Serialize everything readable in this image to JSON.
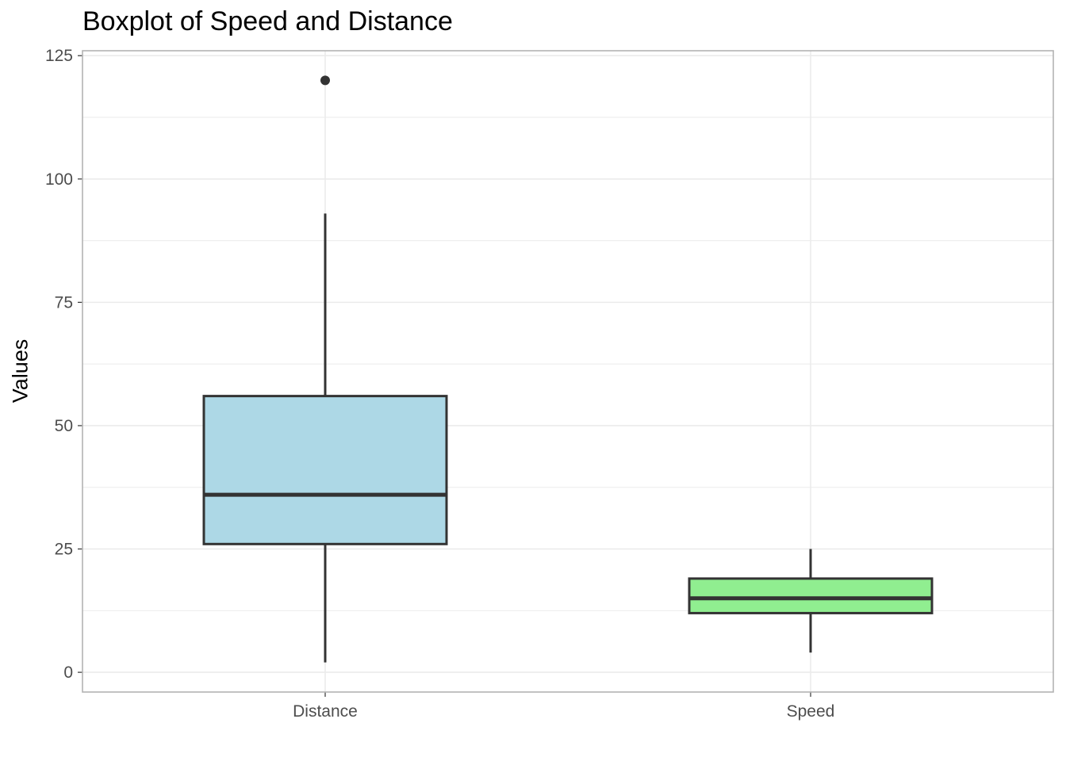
{
  "chart_data": {
    "type": "boxplot",
    "title": "Boxplot of Speed and Distance",
    "xlabel": "",
    "ylabel": "Values",
    "ylim": [
      -4,
      126
    ],
    "y_ticks": [
      0,
      25,
      50,
      75,
      100,
      125
    ],
    "grid": true,
    "categories": [
      "Distance",
      "Speed"
    ],
    "boxes": [
      {
        "category": "Distance",
        "whisker_low": 2,
        "q1": 26,
        "median": 36,
        "q3": 56,
        "whisker_high": 93,
        "outliers": [
          120
        ],
        "fill": "#add8e6"
      },
      {
        "category": "Speed",
        "whisker_low": 4,
        "q1": 12,
        "median": 15,
        "q3": 19,
        "whisker_high": 25,
        "outliers": [],
        "fill": "#90ee90"
      }
    ],
    "colors": {
      "stroke": "#333333",
      "grid": "#ebebeb",
      "panel_border": "#b3b3b3",
      "tick_text": "#4d4d4d"
    }
  }
}
